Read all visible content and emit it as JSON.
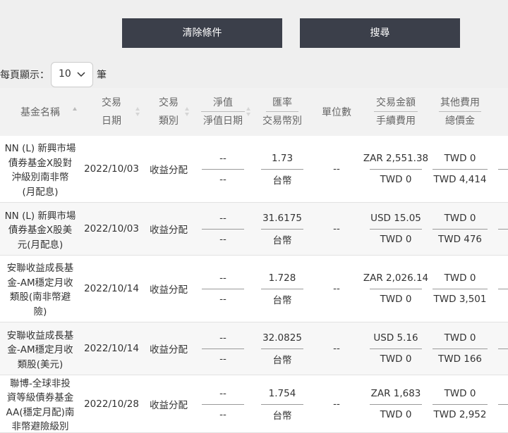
{
  "buttons": [
    "清除條件",
    "搜尋"
  ],
  "page_size": {
    "label": "每頁顯示：",
    "value": "10",
    "unit": "筆"
  },
  "table": {
    "columns": [
      {
        "lines": [
          "基金名稱"
        ]
      },
      {
        "lines": [
          "交易",
          "日期"
        ]
      },
      {
        "lines": [
          "交易",
          "類別"
        ]
      },
      {
        "lines": [
          "淨值",
          "淨值日期"
        ]
      },
      {
        "lines": [
          "匯率",
          "交易幣別"
        ]
      },
      {
        "lines": [
          "單位數"
        ]
      },
      {
        "lines": [
          "交易金額",
          "手續費用"
        ]
      },
      {
        "lines": [
          "其他費用",
          "總價金"
        ]
      }
    ],
    "rows": [
      {
        "name": [
          "NN (L) 新興市場",
          "債券基金X股對",
          "沖級別南非幣",
          "(月配息)"
        ],
        "date": "2022/10/03",
        "type": "收益分配",
        "nav": "--",
        "nav_date": "--",
        "rate": "1.73",
        "currency": "台幣",
        "units": "--",
        "amount": "ZAR 2,551.38",
        "fee": "TWD 0",
        "other": "TWD 0",
        "total": "TWD 4,414"
      },
      {
        "name": [
          "NN (L) 新興市場",
          "債券基金X股美",
          "元(月配息)"
        ],
        "date": "2022/10/03",
        "type": "收益分配",
        "nav": "--",
        "nav_date": "--",
        "rate": "31.6175",
        "currency": "台幣",
        "units": "--",
        "amount": "USD 15.05",
        "fee": "TWD 0",
        "other": "TWD 0",
        "total": "TWD 476"
      },
      {
        "name": [
          "安聯收益成長基",
          "金-AM穩定月收",
          "類股(南非幣避",
          "險)"
        ],
        "date": "2022/10/14",
        "type": "收益分配",
        "nav": "--",
        "nav_date": "--",
        "rate": "1.728",
        "currency": "台幣",
        "units": "--",
        "amount": "ZAR 2,026.14",
        "fee": "TWD 0",
        "other": "TWD 0",
        "total": "TWD 3,501"
      },
      {
        "name": [
          "安聯收益成長基",
          "金-AM穩定月收",
          "類股(美元)"
        ],
        "date": "2022/10/14",
        "type": "收益分配",
        "nav": "--",
        "nav_date": "--",
        "rate": "32.0825",
        "currency": "台幣",
        "units": "--",
        "amount": "USD 5.16",
        "fee": "TWD 0",
        "other": "TWD 0",
        "total": "TWD 166"
      },
      {
        "name": [
          "聯博-全球非投",
          "資等級債券基金",
          "AA(穩定月配)南",
          "非幣避險級別"
        ],
        "date": "2022/10/28",
        "type": "收益分配",
        "nav": "--",
        "nav_date": "--",
        "rate": "1.754",
        "currency": "台幣",
        "units": "--",
        "amount": "ZAR 1,683",
        "fee": "TWD 0",
        "other": "TWD 0",
        "total": "TWD 2,952"
      }
    ]
  }
}
